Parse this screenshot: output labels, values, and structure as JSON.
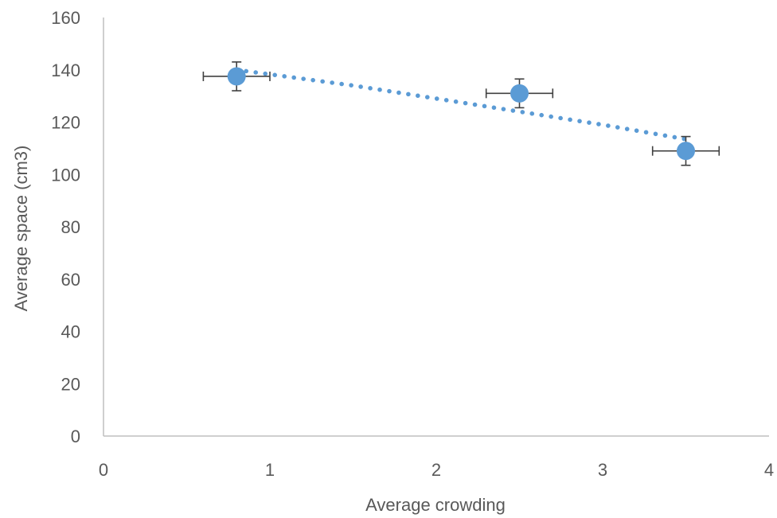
{
  "chart_data": {
    "type": "scatter",
    "title": "",
    "xlabel": "Average crowding",
    "ylabel": "Average space (cm3)",
    "xlim": [
      0,
      4
    ],
    "ylim": [
      0,
      160
    ],
    "x_ticks": [
      0,
      1,
      2,
      3,
      4
    ],
    "y_ticks": [
      0,
      20,
      40,
      60,
      80,
      100,
      120,
      140,
      160
    ],
    "grid": false,
    "legend": "none",
    "points": [
      {
        "x": 0.8,
        "y": 137.5,
        "x_err": 0.2,
        "y_err": 5.5
      },
      {
        "x": 2.5,
        "y": 131,
        "x_err": 0.2,
        "y_err": 5.5
      },
      {
        "x": 3.5,
        "y": 109,
        "x_err": 0.2,
        "y_err": 5.5
      }
    ],
    "trendline": {
      "style": "dotted",
      "kind": "polynomial",
      "x_range": [
        0.8,
        3.5
      ],
      "points": [
        {
          "x": 0.8,
          "y": 140
        },
        {
          "x": 1.5,
          "y": 134
        },
        {
          "x": 2.0,
          "y": 129
        },
        {
          "x": 2.5,
          "y": 124
        },
        {
          "x": 3.0,
          "y": 119
        },
        {
          "x": 3.5,
          "y": 113.5
        }
      ]
    },
    "colors": {
      "marker": "#5b9bd5",
      "trendline": "#5b9bd5",
      "error_bar": "#404040",
      "axis": "#bfbfbf",
      "text": "#595959"
    }
  }
}
